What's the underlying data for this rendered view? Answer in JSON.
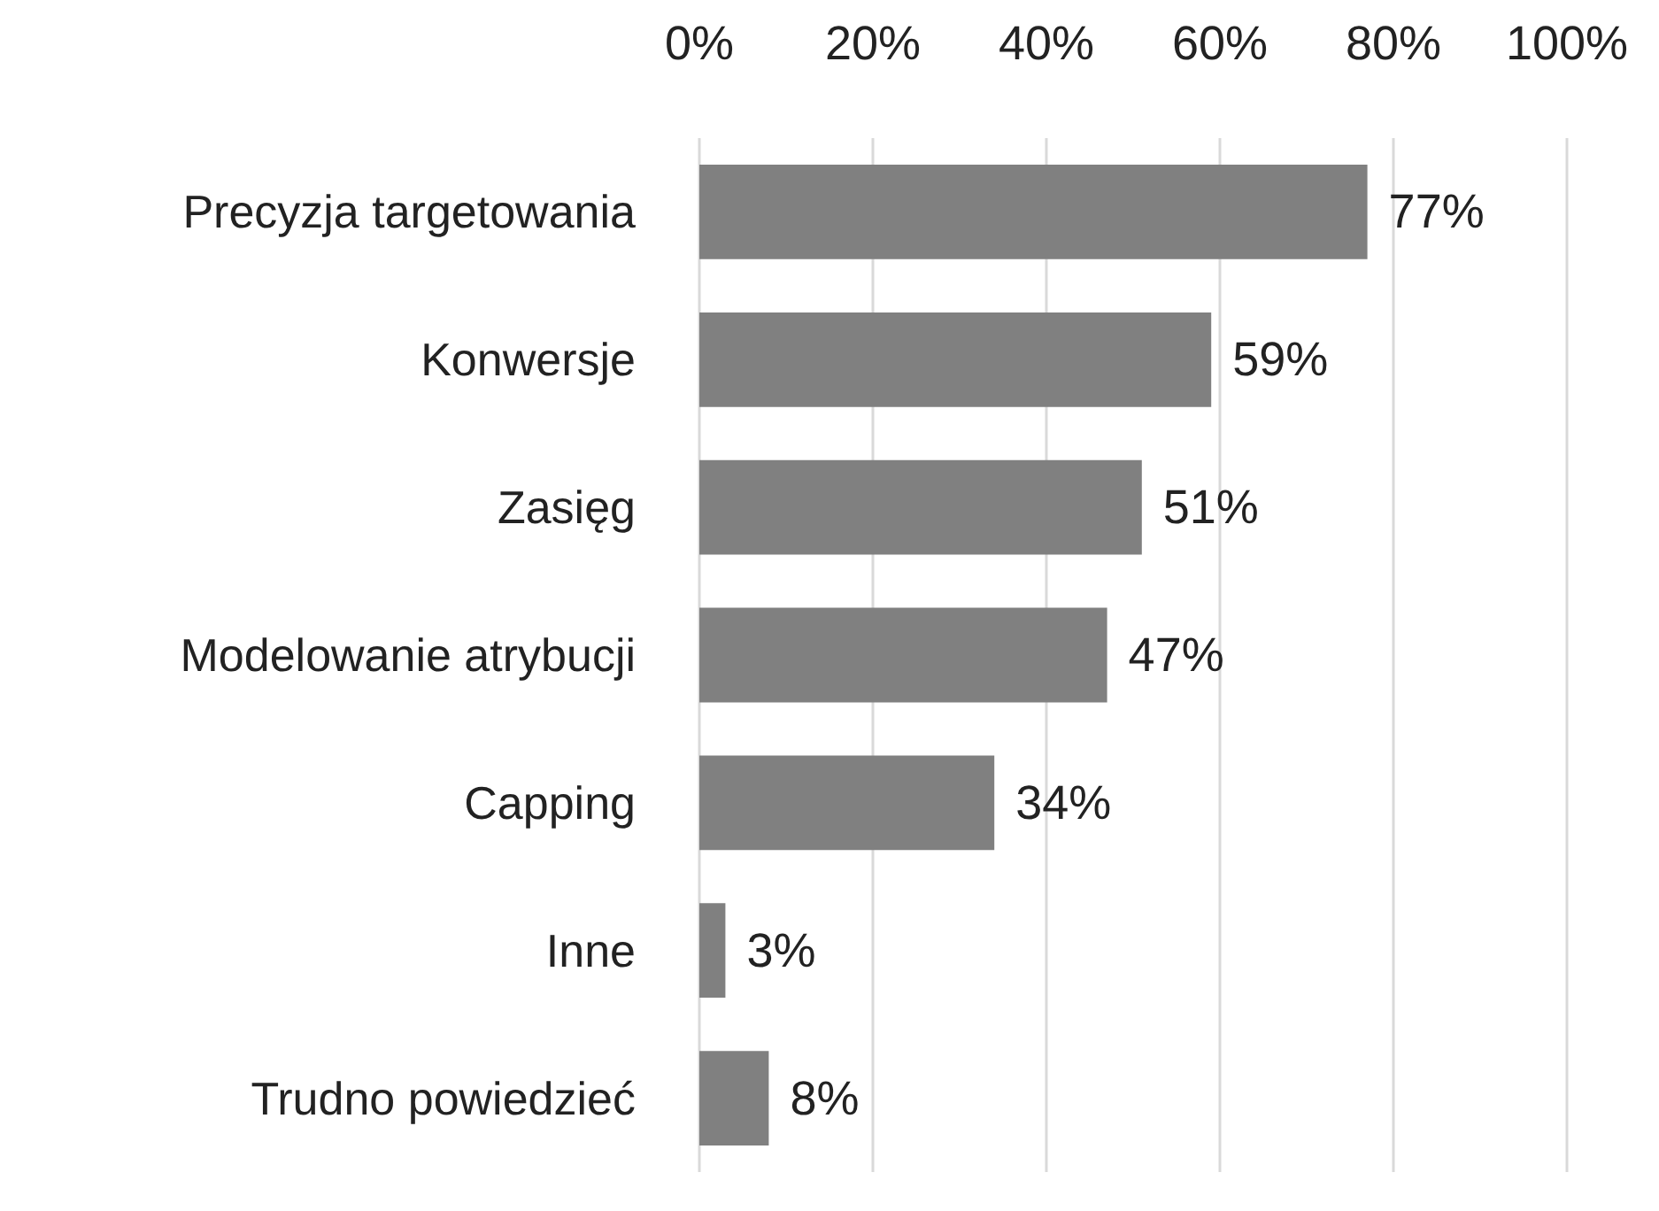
{
  "chart_data": {
    "type": "bar",
    "orientation": "horizontal",
    "categories": [
      "Precyzja targetowania",
      "Konwersje",
      "Zasięg",
      "Modelowanie atrybucji",
      "Capping",
      "Inne",
      "Trudno powiedzieć"
    ],
    "values": [
      77,
      59,
      51,
      47,
      34,
      3,
      8
    ],
    "value_labels": [
      "77%",
      "59%",
      "51%",
      "47%",
      "34%",
      "3%",
      "8%"
    ],
    "color": "#808080",
    "xlim": [
      0,
      100
    ],
    "xticks": [
      {
        "value": 0,
        "label": "0%"
      },
      {
        "value": 20,
        "label": "20%"
      },
      {
        "value": 40,
        "label": "40%"
      },
      {
        "value": 60,
        "label": "60%"
      },
      {
        "value": 80,
        "label": "80%"
      },
      {
        "value": 100,
        "label": "100%"
      }
    ],
    "grid": "x"
  }
}
